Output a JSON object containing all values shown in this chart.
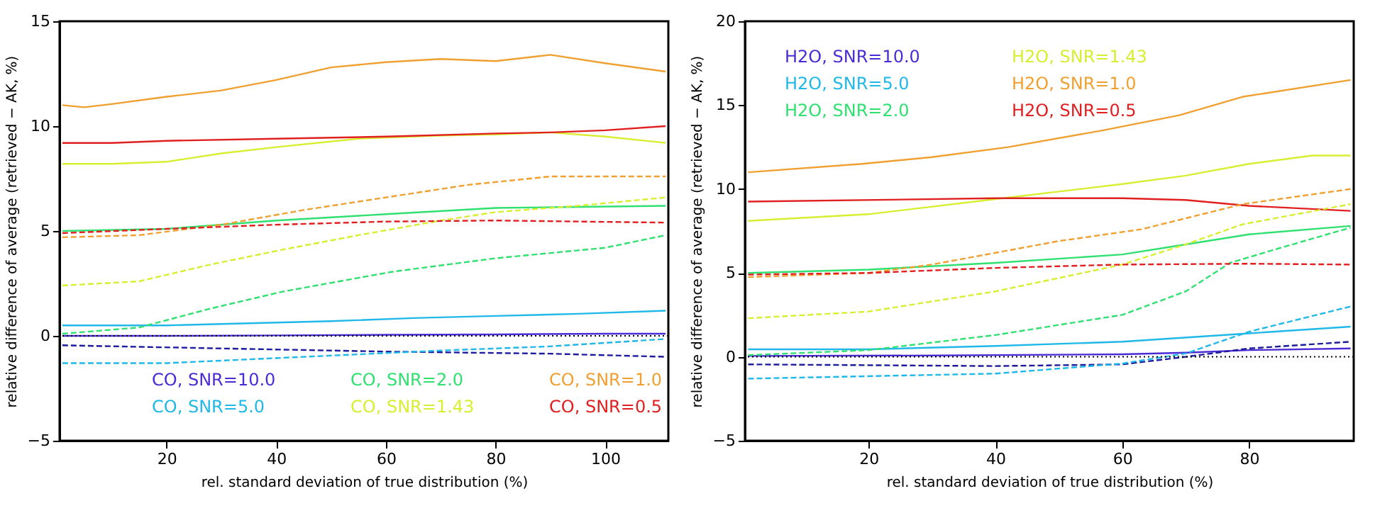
{
  "chart_data": [
    {
      "type": "line",
      "xlabel": "rel. standard deviation of true distribution (%)",
      "ylabel": "relative difference of average (retrieved − AK, %)",
      "xlim": [
        0.5,
        111.5
      ],
      "ylim": [
        -5,
        15
      ],
      "xticks": [
        20,
        40,
        60,
        80,
        100
      ],
      "yticks": [
        -5,
        0,
        5,
        10,
        15
      ],
      "grid": false,
      "legend": "bottom",
      "marker": "none",
      "ref_lines": [
        {
          "axis": "y",
          "value": 0,
          "color": "#000000",
          "line_style": "dotted"
        }
      ],
      "series": [
        {
          "name": "CO, SNR=10.0",
          "color": "#4b2bd6",
          "line_style": "solid",
          "x": [
            1,
            20,
            40,
            60,
            80,
            100,
            111
          ],
          "values": [
            0.0,
            0.0,
            0.02,
            0.05,
            0.07,
            0.1,
            0.1
          ]
        },
        {
          "name": "CO, SNR=5.0",
          "color": "#20b8e8",
          "line_style": "solid",
          "x": [
            1,
            20,
            35,
            50,
            65,
            80,
            95,
            111
          ],
          "values": [
            0.5,
            0.5,
            0.6,
            0.7,
            0.85,
            0.95,
            1.05,
            1.2
          ]
        },
        {
          "name": "CO, SNR=2.0",
          "color": "#30e070",
          "line_style": "solid",
          "x": [
            1,
            20,
            40,
            60,
            80,
            95,
            111
          ],
          "values": [
            5.0,
            5.1,
            5.5,
            5.8,
            6.1,
            6.15,
            6.2
          ]
        },
        {
          "name": "CO, SNR=1.43",
          "color": "#d8ee30",
          "line_style": "solid",
          "x": [
            1,
            10,
            20,
            30,
            40,
            55,
            70,
            80,
            90,
            100,
            111
          ],
          "values": [
            8.2,
            8.2,
            8.3,
            8.7,
            9.0,
            9.4,
            9.55,
            9.6,
            9.7,
            9.5,
            9.2
          ]
        },
        {
          "name": "CO, SNR=1.0",
          "color": "#f0a030",
          "line_style": "solid",
          "x": [
            1,
            5,
            10,
            20,
            30,
            40,
            50,
            60,
            70,
            80,
            90,
            100,
            111
          ],
          "values": [
            11.0,
            10.9,
            11.05,
            11.4,
            11.7,
            12.2,
            12.8,
            13.05,
            13.2,
            13.1,
            13.4,
            13.0,
            12.6
          ]
        },
        {
          "name": "CO, SNR=0.5",
          "color": "#e02020",
          "line_style": "solid",
          "x": [
            1,
            10,
            20,
            40,
            60,
            80,
            90,
            100,
            111
          ],
          "values": [
            9.2,
            9.2,
            9.3,
            9.4,
            9.5,
            9.65,
            9.7,
            9.8,
            10.0
          ]
        },
        {
          "color": "#1c1c9c",
          "line_style": "dashed",
          "x": [
            1,
            30,
            60,
            90,
            111
          ],
          "values": [
            -0.45,
            -0.6,
            -0.75,
            -0.85,
            -1.0
          ]
        },
        {
          "color": "#20b8e8",
          "line_style": "dashed",
          "x": [
            1,
            20,
            45,
            70,
            90,
            111
          ],
          "values": [
            -1.3,
            -1.3,
            -1.0,
            -0.7,
            -0.5,
            -0.15
          ]
        },
        {
          "color": "#30e070",
          "line_style": "dashed",
          "x": [
            1,
            15,
            28,
            41,
            61,
            80,
            100,
            111
          ],
          "values": [
            0.1,
            0.4,
            1.3,
            2.1,
            3.05,
            3.7,
            4.2,
            4.8
          ]
        },
        {
          "color": "#d8ee30",
          "line_style": "dashed",
          "x": [
            1,
            15,
            28,
            41,
            55,
            70,
            80,
            95,
            111
          ],
          "values": [
            2.4,
            2.6,
            3.4,
            4.1,
            4.8,
            5.5,
            5.9,
            6.2,
            6.6
          ]
        },
        {
          "color": "#f0a030",
          "line_style": "dashed",
          "x": [
            1,
            15,
            30,
            45,
            60,
            75,
            90,
            111
          ],
          "values": [
            4.7,
            4.8,
            5.3,
            6.0,
            6.6,
            7.2,
            7.6,
            7.6
          ]
        },
        {
          "color": "#e02020",
          "line_style": "dashed",
          "x": [
            1,
            20,
            40,
            60,
            80,
            111
          ],
          "values": [
            4.9,
            5.1,
            5.3,
            5.45,
            5.5,
            5.4
          ]
        }
      ]
    },
    {
      "type": "line",
      "xlabel": "rel. standard deviation of true distribution (%)",
      "ylabel": "relative difference of average (retrieved − AK, %)",
      "xlim": [
        0.5,
        96.5
      ],
      "ylim": [
        -5,
        20
      ],
      "xticks": [
        20,
        40,
        60,
        80
      ],
      "yticks": [
        -5,
        0,
        5,
        10,
        15,
        20
      ],
      "grid": false,
      "legend": "top left",
      "marker": "none",
      "ref_lines": [
        {
          "axis": "y",
          "value": 0,
          "color": "#000000",
          "line_style": "dotted"
        }
      ],
      "series": [
        {
          "name": "H2O, SNR=10.0",
          "color": "#4b2bd6",
          "line_style": "solid",
          "x": [
            1,
            30,
            60,
            70,
            80,
            96
          ],
          "values": [
            0.05,
            0.08,
            0.15,
            0.25,
            0.4,
            0.5
          ]
        },
        {
          "name": "H2O, SNR=5.0",
          "color": "#20b8e8",
          "line_style": "solid",
          "x": [
            1,
            20,
            40,
            60,
            80,
            96
          ],
          "values": [
            0.45,
            0.45,
            0.65,
            0.9,
            1.4,
            1.8
          ]
        },
        {
          "name": "H2O, SNR=2.0",
          "color": "#30e070",
          "line_style": "solid",
          "x": [
            1,
            20,
            40,
            60,
            70,
            80,
            96
          ],
          "values": [
            5.0,
            5.2,
            5.6,
            6.1,
            6.7,
            7.3,
            7.8
          ]
        },
        {
          "name": "H2O, SNR=1.43",
          "color": "#d8ee30",
          "line_style": "solid",
          "x": [
            1,
            20,
            40,
            60,
            70,
            80,
            90,
            96
          ],
          "values": [
            8.1,
            8.5,
            9.4,
            10.3,
            10.8,
            11.5,
            12.0,
            12.0
          ]
        },
        {
          "name": "H2O, SNR=1.0",
          "color": "#f0a030",
          "line_style": "solid",
          "x": [
            1,
            19,
            30,
            42,
            57,
            69,
            79,
            96
          ],
          "values": [
            11.0,
            11.5,
            11.9,
            12.5,
            13.5,
            14.4,
            15.5,
            16.5
          ]
        },
        {
          "name": "H2O, SNR=0.5",
          "color": "#e02020",
          "line_style": "solid",
          "x": [
            1,
            40,
            60,
            70,
            80,
            96
          ],
          "values": [
            9.25,
            9.45,
            9.45,
            9.35,
            9.0,
            8.7
          ]
        },
        {
          "color": "#1c1c9c",
          "line_style": "dashed",
          "x": [
            1,
            40,
            60,
            70,
            80,
            96
          ],
          "values": [
            -0.45,
            -0.55,
            -0.45,
            0.0,
            0.5,
            0.9
          ]
        },
        {
          "color": "#20b8e8",
          "line_style": "dashed",
          "x": [
            1,
            40,
            60,
            70,
            80,
            96
          ],
          "values": [
            -1.3,
            -1.0,
            -0.4,
            0.2,
            1.5,
            3.0
          ]
        },
        {
          "color": "#30e070",
          "line_style": "dashed",
          "x": [
            1,
            20,
            40,
            60,
            70,
            77,
            85,
            96
          ],
          "values": [
            0.1,
            0.4,
            1.3,
            2.5,
            3.9,
            5.6,
            6.5,
            7.7
          ]
        },
        {
          "color": "#d8ee30",
          "line_style": "dashed",
          "x": [
            1,
            20,
            40,
            60,
            70,
            79,
            96
          ],
          "values": [
            2.3,
            2.7,
            3.9,
            5.5,
            6.7,
            7.9,
            9.1
          ]
        },
        {
          "color": "#f0a030",
          "line_style": "dashed",
          "x": [
            1,
            20,
            30,
            40,
            50,
            63,
            79,
            96
          ],
          "values": [
            4.75,
            5.0,
            5.5,
            6.2,
            6.9,
            7.6,
            9.1,
            10.0
          ]
        },
        {
          "color": "#e02020",
          "line_style": "dashed",
          "x": [
            1,
            20,
            40,
            60,
            80,
            96
          ],
          "values": [
            4.9,
            5.0,
            5.3,
            5.5,
            5.55,
            5.5
          ]
        }
      ]
    }
  ]
}
